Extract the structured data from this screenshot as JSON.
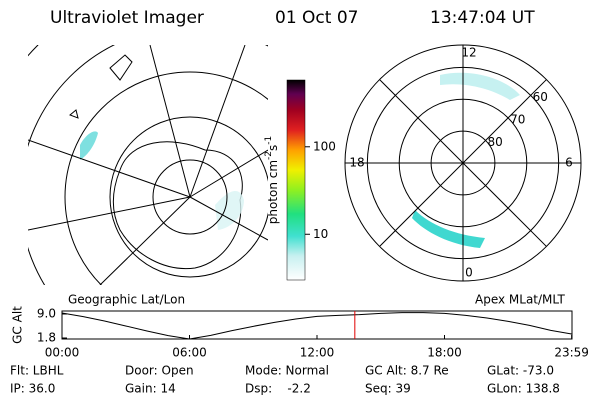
{
  "header": {
    "title": "Ultraviolet Imager",
    "date": "01 Oct 07",
    "time": "13:47:04 UT"
  },
  "left_panel": {
    "label": "Geographic Lat/Lon"
  },
  "right_panel": {
    "label": "Apex MLat/MLT",
    "lat_min": 53,
    "lat_rings": [
      80,
      70,
      60
    ],
    "mlt_labels": [
      12,
      6,
      0,
      18
    ]
  },
  "colorbar": {
    "label": {
      "base": "photon cm",
      "sup1": "-2",
      "mid": "s",
      "sup2": "-1"
    },
    "lim": [
      3,
      580
    ],
    "log": true,
    "ticks": [
      10,
      100
    ]
  },
  "chart_data": {
    "type": "line",
    "y_label": "GC Alt",
    "x": [
      0,
      1,
      2,
      3,
      4,
      5,
      6,
      7,
      8,
      9,
      10,
      11,
      12,
      13,
      14,
      15,
      16,
      17,
      18,
      19,
      20,
      21,
      22,
      23,
      23.983
    ],
    "series": [
      {
        "name": "GC Alt",
        "color": "#000000",
        "values": [
          9.3,
          8.2,
          6.9,
          5.4,
          3.9,
          2.5,
          1.5,
          2.6,
          4.0,
          5.3,
          6.5,
          7.5,
          8.3,
          8.6,
          8.8,
          9.2,
          9.4,
          9.4,
          9.2,
          8.6,
          7.8,
          6.8,
          5.6,
          4.1,
          3.0
        ]
      }
    ],
    "xlim": [
      0,
      24
    ],
    "xticks": [
      {
        "value": 0,
        "label": "00:00"
      },
      {
        "value": 6,
        "label": "06:00"
      },
      {
        "value": 12,
        "label": "12:00"
      },
      {
        "value": 18,
        "label": "18:00"
      },
      {
        "value": 23.983,
        "label": "23:59"
      }
    ],
    "ylim": [
      1.5,
      9.9
    ],
    "yticks": [
      1.8,
      {
        "value": 9,
        "label": "9.0"
      }
    ],
    "marker_x": 13.78,
    "marker_color": "#e00000"
  },
  "info": [
    [
      "Flt: LBHL",
      "Door: Open",
      "Mode: Normal",
      "GC Alt: 8.7 Re",
      "GLat: -73.0"
    ],
    [
      "IP: 36.0",
      "Gain: 14",
      "Dsp:    -2.2",
      "Seq: 39",
      "GLon: 138.8"
    ]
  ]
}
